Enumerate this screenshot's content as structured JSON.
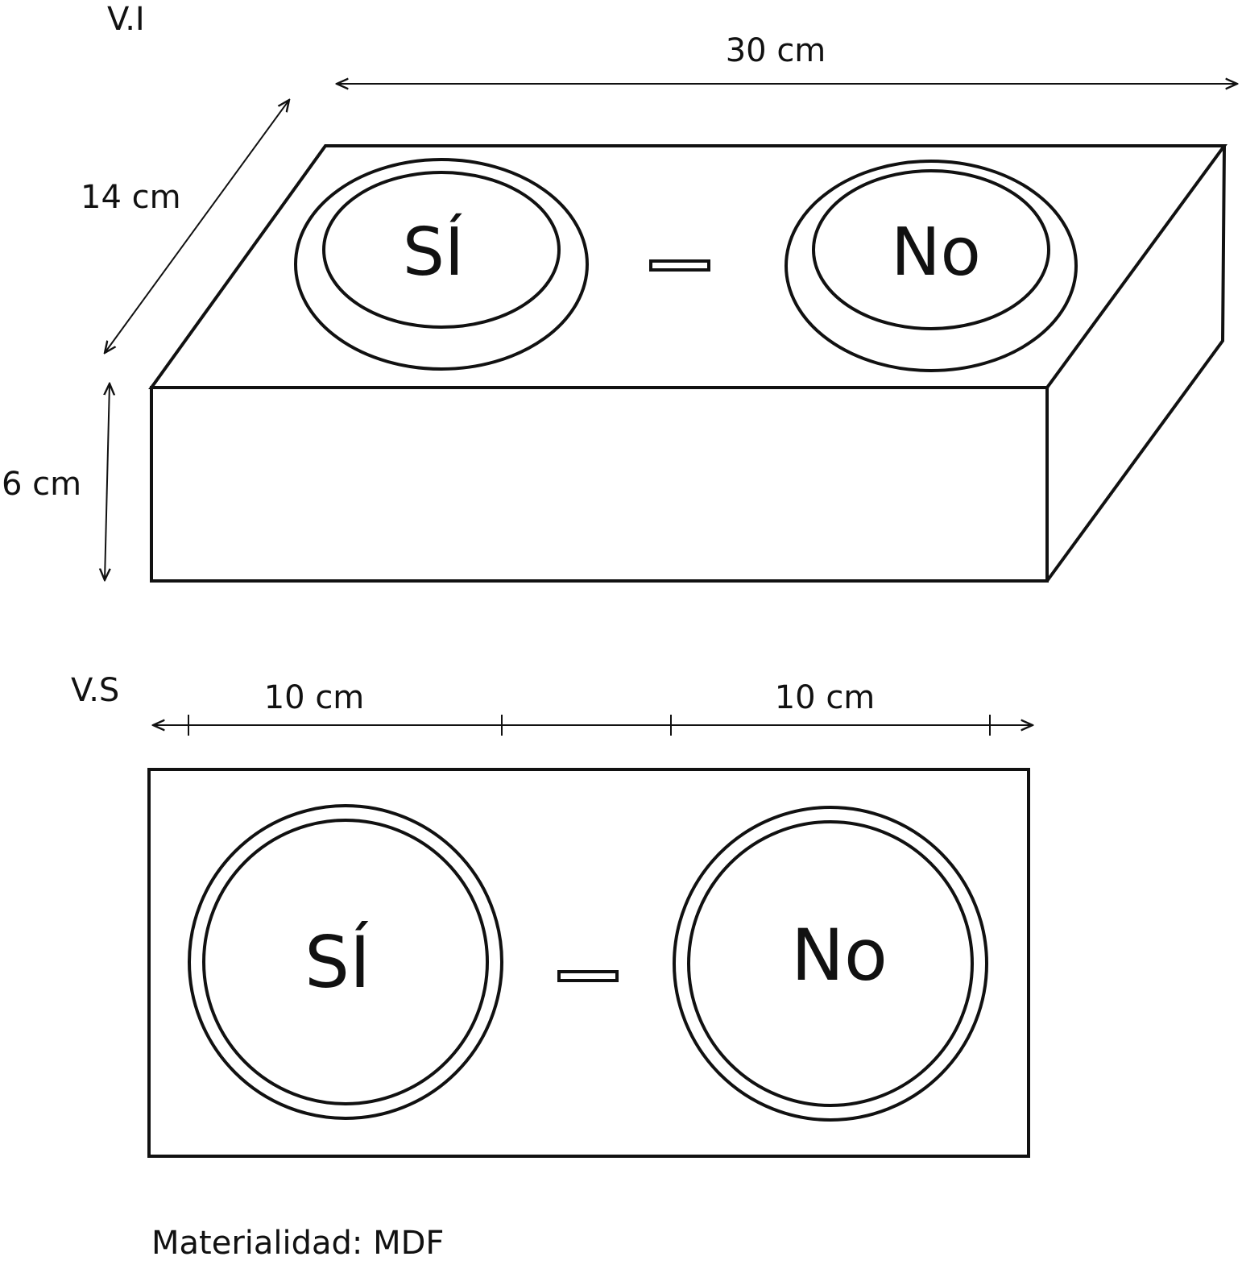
{
  "views": {
    "isometric": {
      "label": "V.I",
      "dim_width": "30 cm",
      "dim_depth": "14 cm",
      "dim_height": "6 cm",
      "button_yes": "SÍ",
      "button_no": "No"
    },
    "top": {
      "label": "V.S",
      "dim_button_left": "10 cm",
      "dim_button_right": "10 cm",
      "button_yes": "SÍ",
      "button_no": "No"
    }
  },
  "material": "Materialidad: MDF",
  "colors": {
    "line": "#111111",
    "background": "#ffffff"
  }
}
